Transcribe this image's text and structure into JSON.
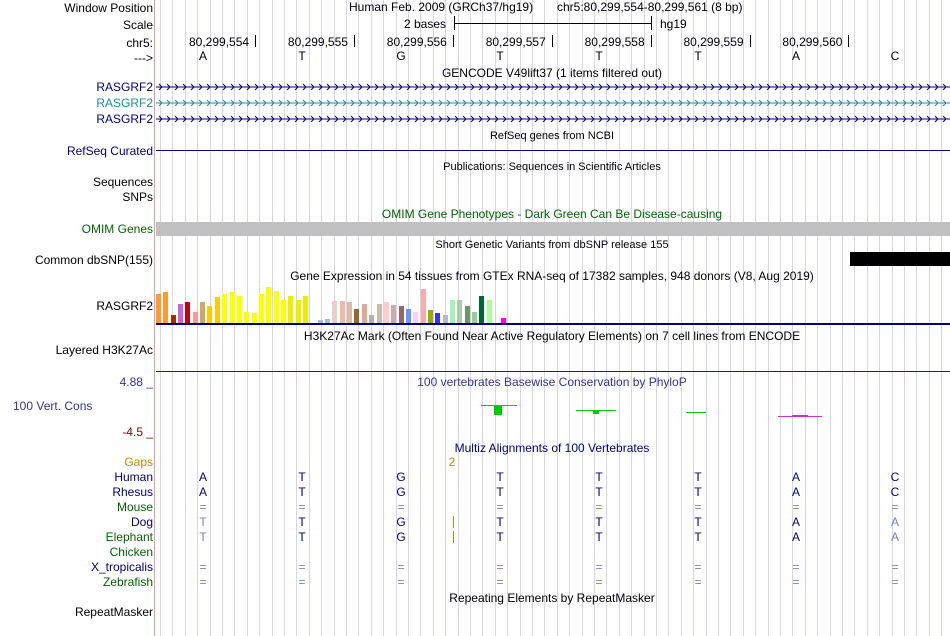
{
  "header": {
    "window_position_label": "Window Position",
    "assembly": "Human Feb. 2009 (GRCh37/hg19)",
    "position": "chr5:80,299,554-80,299,561 (8 bp)",
    "scale_label": "Scale",
    "scale_value": "2 bases",
    "scale_db": "hg19",
    "chrom_label": "chr5:",
    "strand_label": "--->"
  },
  "ruler": {
    "positions": [
      "80,299,554",
      "80,299,555",
      "80,299,556",
      "80,299,557",
      "80,299,558",
      "80,299,559",
      "80,299,560"
    ],
    "bases": [
      "A",
      "T",
      "G",
      "T",
      "T",
      "T",
      "A",
      "C"
    ]
  },
  "tracks": {
    "gencode": {
      "title": "GENCODE V49lift37 (1 items filtered out)",
      "items": [
        "RASGRF2",
        "RASGRF2",
        "RASGRF2"
      ]
    },
    "refseq": {
      "title": "RefSeq genes from NCBI",
      "label": "RefSeq Curated"
    },
    "publications": {
      "title": "Publications: Sequences in Scientific Articles",
      "label1": "Sequences",
      "label2": "SNPs"
    },
    "omim": {
      "title": "OMIM Gene Phenotypes - Dark Green Can Be Disease-causing",
      "label": "OMIM Genes"
    },
    "dbsnp": {
      "title": "Short Genetic Variants from dbSNP release 155",
      "label": "Common dbSNP(155)"
    },
    "gtex": {
      "title": "Gene Expression in 54 tissues from GTEx RNA-seq of 17382 samples, 948 donors (V8, Aug 2019)",
      "label": "RASGRF2",
      "values": [
        30,
        33,
        8,
        20,
        22,
        12,
        22,
        18,
        27,
        30,
        33,
        28,
        12,
        10,
        30,
        38,
        34,
        24,
        28,
        24,
        28,
        0,
        3,
        4,
        23,
        23,
        22,
        15,
        20,
        8,
        20,
        22,
        19,
        18,
        15,
        12,
        36,
        14,
        10,
        8,
        24,
        24,
        18,
        12,
        28,
        24,
        0,
        5,
        0,
        0,
        0,
        0,
        0,
        0
      ],
      "colors": [
        "#ff9933",
        "#ff9933",
        "#993300",
        "#cc66cc",
        "#cc0000",
        "#ff9999",
        "#ccaa66",
        "#ffcc00",
        "#ffcc00",
        "#ffff00",
        "#ffff00",
        "#ffff00",
        "#ffff00",
        "#ffff00",
        "#ffff00",
        "#ffff00",
        "#ffff00",
        "#ffff00",
        "#eeee00",
        "#eeee00",
        "#eeee00",
        "#33cccc",
        "#aabbdd",
        "#aabbdd",
        "#eecccc",
        "#eebbaa",
        "#ddbbaa",
        "#996633",
        "#ddaa99",
        "#bbaaaa",
        "#ccbbaa",
        "#ffcccc",
        "#ccaaaa",
        "#996666",
        "#6699ff",
        "#ffccff",
        "#ffaaaa",
        "#99aa00",
        "#3333ff",
        "#bbbbbb",
        "#aaeebb",
        "#aaccaa",
        "#669966",
        "#99cc99",
        "#006633",
        "#aaff99",
        "#ff66ff",
        "#ff00ff",
        "#ffffff",
        "#ffffff",
        "#ffffff",
        "#ffffff",
        "#ffffff",
        "#ffffff"
      ]
    },
    "h3k27ac": {
      "title": "H3K27Ac Mark (Often Found Near Active Regulatory Elements) on 7 cell lines from ENCODE",
      "label": "Layered H3K27Ac"
    },
    "phylop": {
      "title": "100 vertebrates Basewise Conservation by PhyloP",
      "label": "100 Vert. Cons",
      "max": "4.88 _",
      "min": "-4.5 _"
    },
    "multiz": {
      "title": "Multiz Alignments of 100 Vertebrates",
      "gaps_label": "Gaps",
      "gaps_value": "2",
      "species": [
        {
          "name": "Human",
          "color": "#000080",
          "bases": [
            "A",
            "T",
            "G",
            "T",
            "T",
            "T",
            "A",
            "C"
          ]
        },
        {
          "name": "Rhesus",
          "color": "#000080",
          "bases": [
            "A",
            "T",
            "G",
            "T",
            "T",
            "T",
            "A",
            "C"
          ]
        },
        {
          "name": "Mouse",
          "color": "#006400",
          "bases": [
            "=",
            "=",
            "=",
            "=",
            "=",
            "=",
            "=",
            "="
          ]
        },
        {
          "name": "Dog",
          "color": "#000080",
          "bases": [
            "T",
            "T",
            "G",
            "T",
            "T",
            "T",
            "A",
            "A"
          ]
        },
        {
          "name": "Elephant",
          "color": "#006400",
          "bases": [
            "T",
            "T",
            "G",
            "T",
            "T",
            "T",
            "A",
            "A"
          ]
        },
        {
          "name": "Chicken",
          "color": "#006400",
          "bases": [
            "",
            "",
            "",
            "",
            "",
            "",
            "",
            ""
          ]
        },
        {
          "name": "X_tropicalis",
          "color": "#000080",
          "bases": [
            "=",
            "=",
            "=",
            "=",
            "=",
            "=",
            "=",
            "="
          ]
        },
        {
          "name": "Zebrafish",
          "color": "#006400",
          "bases": [
            "=",
            "=",
            "=",
            "=",
            "=",
            "=",
            "=",
            "="
          ]
        }
      ]
    },
    "repeatmasker": {
      "title": "Repeating Elements by RepeatMasker",
      "label": "RepeatMasker"
    }
  },
  "colors": {
    "navy": "#000080",
    "teal": "#1b8fa0",
    "green": "#006400",
    "orange": "#cc8800",
    "phylop_green": "#00cc00",
    "phylop_magenta": "#cc33cc",
    "omim_gray": "#c0c0c0",
    "dbsnp_black": "#000000"
  }
}
